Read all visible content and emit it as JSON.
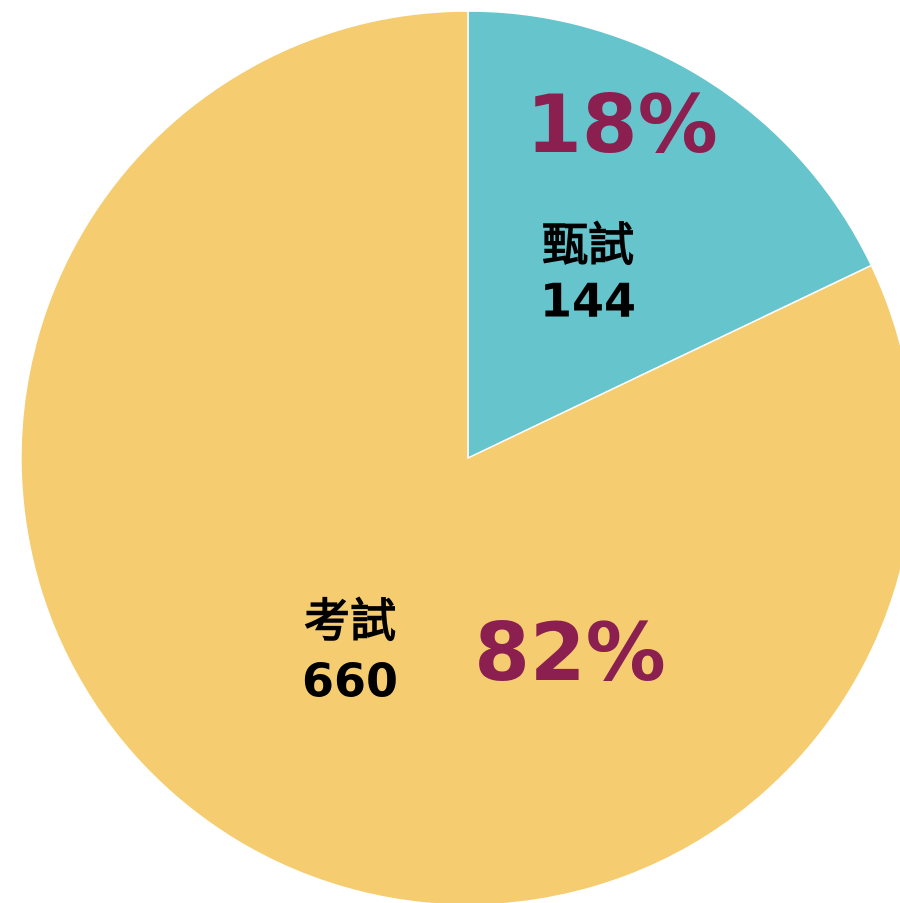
{
  "chart_data": {
    "type": "pie",
    "categories": [
      "甄試",
      "考試"
    ],
    "values": [
      144,
      660
    ],
    "shares": [
      18,
      82
    ],
    "share_labels": [
      "18%",
      "82%"
    ],
    "colors": [
      "#66c4cc",
      "#f5cd70"
    ]
  }
}
